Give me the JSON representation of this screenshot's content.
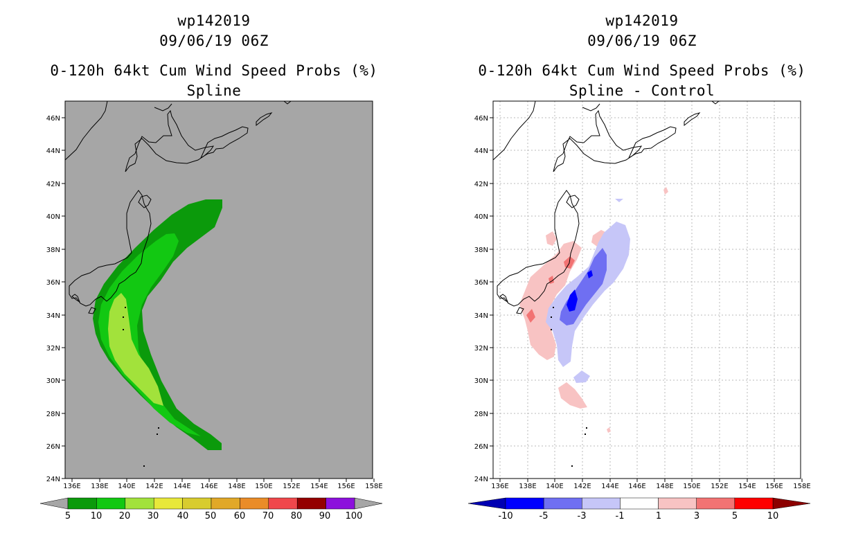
{
  "colors": {
    "land_bg_left": "#a6a6a6",
    "bg_right": "#ffffff",
    "prob_5": "#0b9a0b",
    "prob_10": "#12c812",
    "prob_20": "#a2e23b",
    "diff_neg_10_5": "#0000ff",
    "diff_neg_5_3": "#6f6ff2",
    "diff_neg_3_1": "#c6c6f8",
    "diff_pos_1_3": "#f8c3c3",
    "diff_pos_3_5": "#f27373"
  },
  "axes": {
    "lat_labels": [
      "46N",
      "44N",
      "42N",
      "40N",
      "38N",
      "36N",
      "34N",
      "32N",
      "30N",
      "28N",
      "26N",
      "24N"
    ],
    "lon_labels": [
      "136E",
      "138E",
      "140E",
      "142E",
      "144E",
      "146E",
      "148E",
      "150E",
      "152E",
      "154E",
      "156E",
      "158E"
    ]
  },
  "left_panel": {
    "title_line1": "wp142019",
    "title_line2": "09/06/19 06Z",
    "title_line3": "0-120h 64kt Cum Wind Speed Probs (%)",
    "title_line4": "Spline",
    "colorbar": {
      "colors": [
        "#0b9a0b",
        "#12c812",
        "#a2e23b",
        "#e8e83a",
        "#d8cc2f",
        "#e1a828",
        "#ea8c28",
        "#f0474b",
        "#940000",
        "#8c10dc"
      ],
      "labels": [
        "5",
        "10",
        "20",
        "30",
        "40",
        "50",
        "60",
        "70",
        "80",
        "90",
        "100"
      ]
    }
  },
  "right_panel": {
    "title_line1": "wp142019",
    "title_line2": "09/06/19 06Z",
    "title_line3": "0-120h 64kt Cum Wind Speed Probs (%)",
    "title_line4": "Spline - Control",
    "colorbar": {
      "colors": [
        "#0000b3",
        "#0000ff",
        "#6f6ff2",
        "#c6c6f8",
        "#ffffff",
        "#f8c3c3",
        "#f27373",
        "#ff0000",
        "#8c0000"
      ],
      "labels": [
        "-10",
        "-5",
        "-3",
        "-1",
        "1",
        "3",
        "5",
        "10"
      ]
    }
  }
}
